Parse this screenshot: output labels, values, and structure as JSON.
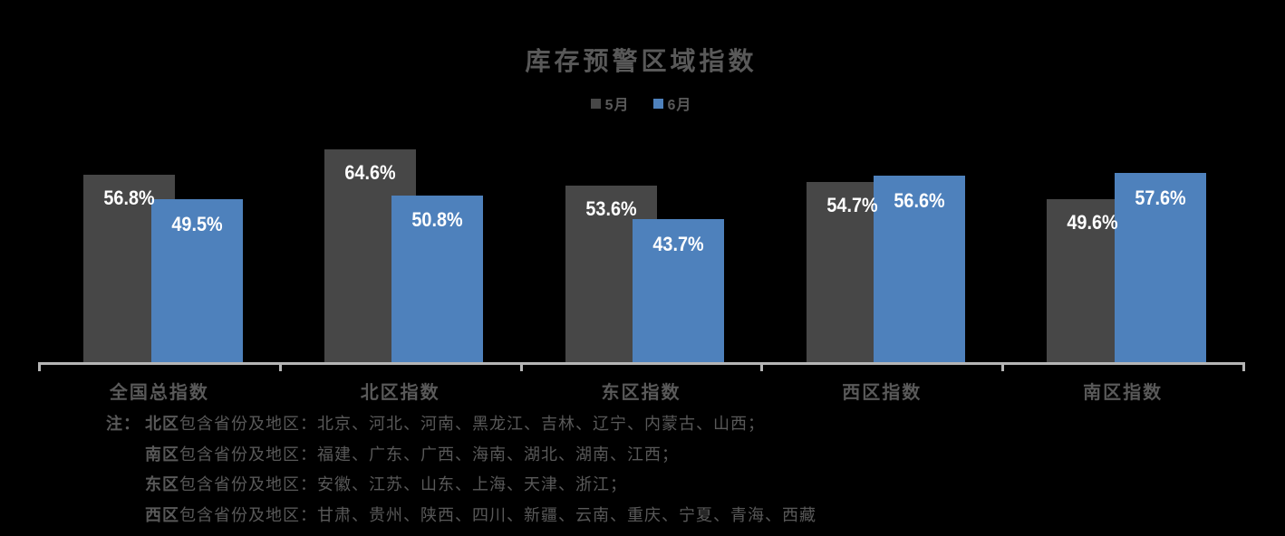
{
  "chart": {
    "title": "库存预警区域指数",
    "legend": [
      {
        "label": "5月",
        "color": "#474747"
      },
      {
        "label": "6月",
        "color": "#4e81bc"
      }
    ]
  },
  "chart_data": {
    "type": "bar",
    "title": "库存预警区域指数",
    "categories": [
      "全国总指数",
      "北区指数",
      "东区指数",
      "西区指数",
      "南区指数"
    ],
    "series": [
      {
        "name": "5月",
        "color": "#474747",
        "values": [
          56.8,
          64.6,
          53.6,
          54.7,
          49.6
        ]
      },
      {
        "name": "6月",
        "color": "#4e81bc",
        "values": [
          49.5,
          50.8,
          43.7,
          56.6,
          57.6
        ]
      }
    ],
    "data_labels": [
      [
        "56.8%",
        "64.6%",
        "53.6%",
        "54.7%",
        "49.6%"
      ],
      [
        "49.5%",
        "50.8%",
        "43.7%",
        "56.6%",
        "57.6%"
      ]
    ],
    "value_format": "percent",
    "ylim": [
      0,
      70
    ],
    "xlabel": "",
    "ylabel": "",
    "grid": false,
    "legend_position": "top",
    "background": "#000000",
    "axis_color": "#b5b5b5",
    "label_color": "#ffffff",
    "text_color": "#595959"
  },
  "notes": {
    "marker": "注：",
    "lines": [
      {
        "bold": "北区",
        "rest": "包含省份及地区：北京、河北、河南、黑龙江、吉林、辽宁、内蒙古、山西；"
      },
      {
        "bold": "南区",
        "rest": "包含省份及地区：福建、广东、广西、海南、湖北、湖南、江西；"
      },
      {
        "bold": "东区",
        "rest": "包含省份及地区：安徽、江苏、山东、上海、天津、浙江；"
      },
      {
        "bold": "西区",
        "rest": "包含省份及地区：甘肃、贵州、陕西、四川、新疆、云南、重庆、宁夏、青海、西藏"
      }
    ]
  }
}
